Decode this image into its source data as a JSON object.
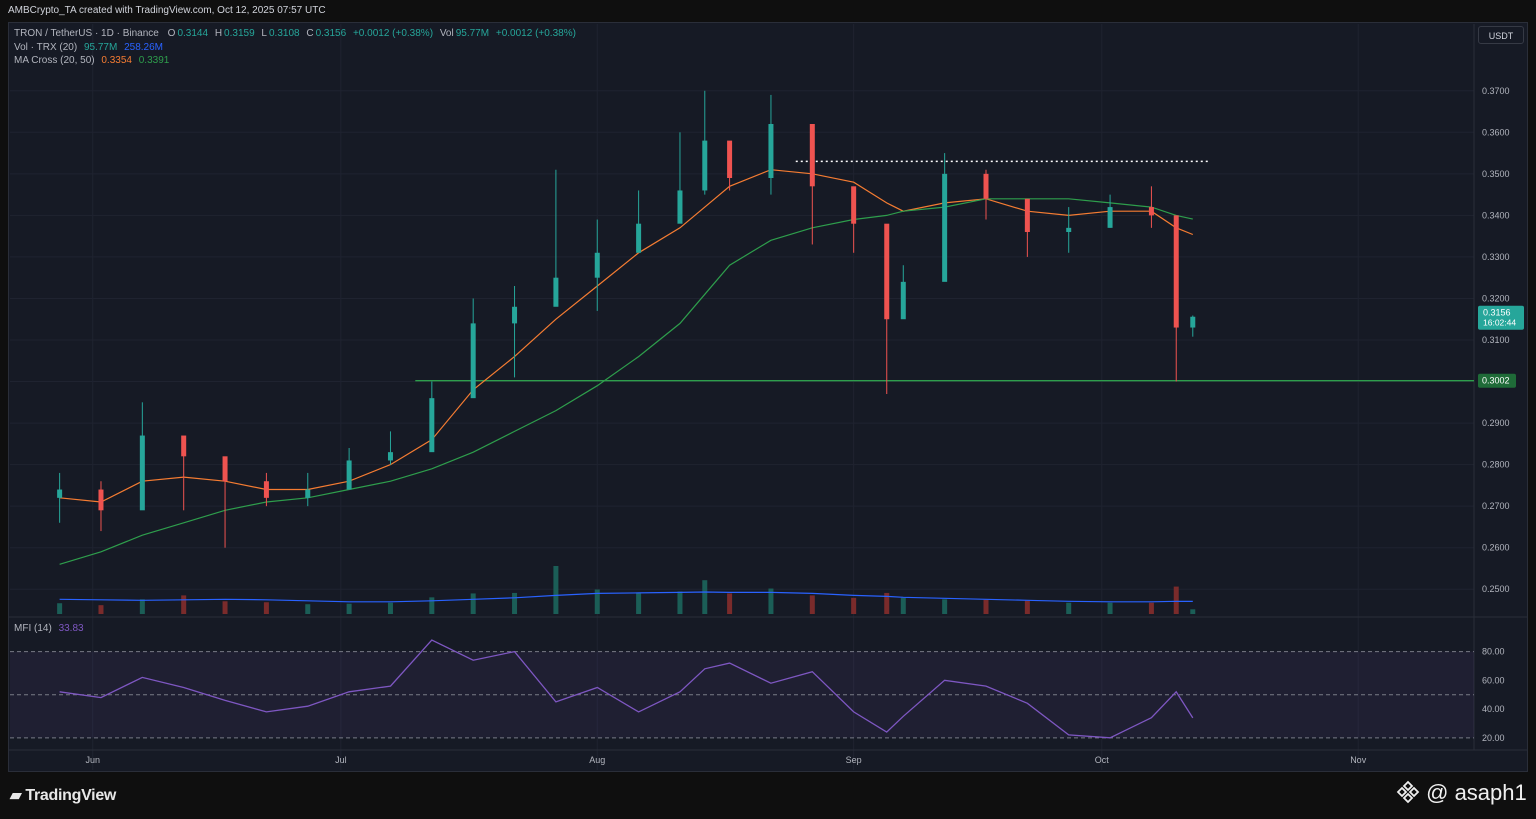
{
  "header": {
    "credit": "AMBCrypto_TA created with TradingView.com, Oct 12, 2025 07:57 UTC"
  },
  "symbol_line": {
    "name": "TRON / TetherUS · 1D · Binance",
    "o_label": "O",
    "o": "0.3144",
    "h_label": "H",
    "h": "0.3159",
    "l_label": "L",
    "l": "0.3108",
    "c_label": "C",
    "c": "0.3156",
    "change": "+0.0012 (+0.38%)",
    "vol_label": "Vol",
    "vol": "95.77M",
    "vol_change": "+0.0012 (+0.38%)"
  },
  "indicators": {
    "vol_label": "Vol · TRX (20)",
    "vol_value": "95.77M",
    "vol_ma": "258.26M",
    "ma_label": "MA Cross (20, 50)",
    "ma20": "0.3354",
    "ma50": "0.3391",
    "mfi_label": "MFI (14)",
    "mfi_value": "33.83"
  },
  "currency_badge": "USDT",
  "price_labels": {
    "current_price": "0.3156",
    "countdown": "16:02:44",
    "support_level": "0.3002"
  },
  "colors": {
    "up": "#26a69a",
    "down": "#ef5350",
    "up_vol": "#1b5e57",
    "down_vol": "#7a2b2b",
    "ma20": "#f57c32",
    "ma50": "#2e9e4c",
    "vol_ma": "#2962ff",
    "mfi_line": "#7e57c2",
    "support_line": "#2e9e4c",
    "resistance_line": "#ffffff",
    "background": "#161a25"
  },
  "footer": {
    "logo": "TradingView",
    "watermark": "@ asaph1",
    "watermark_icon": "binance-diamond-icon"
  },
  "chart_data": [
    {
      "type": "candlestick",
      "title": "TRON / TetherUS · 1D · Binance",
      "x": [
        "2025-05-28",
        "2025-06-02",
        "2025-06-07",
        "2025-06-12",
        "2025-06-17",
        "2025-06-22",
        "2025-06-27",
        "2025-07-02",
        "2025-07-07",
        "2025-07-12",
        "2025-07-17",
        "2025-07-22",
        "2025-07-27",
        "2025-08-01",
        "2025-08-06",
        "2025-08-11",
        "2025-08-14",
        "2025-08-17",
        "2025-08-22",
        "2025-08-27",
        "2025-09-01",
        "2025-09-05",
        "2025-09-07",
        "2025-09-12",
        "2025-09-17",
        "2025-09-22",
        "2025-09-27",
        "2025-10-02",
        "2025-10-07",
        "2025-10-10",
        "2025-10-12"
      ],
      "close": [
        0.274,
        0.269,
        0.287,
        0.282,
        0.276,
        0.272,
        0.274,
        0.281,
        0.283,
        0.296,
        0.314,
        0.318,
        0.325,
        0.331,
        0.338,
        0.346,
        0.358,
        0.349,
        0.362,
        0.347,
        0.338,
        0.315,
        0.324,
        0.35,
        0.344,
        0.336,
        0.337,
        0.342,
        0.34,
        0.313,
        0.3156
      ],
      "high": [
        0.278,
        0.276,
        0.295,
        0.286,
        0.279,
        0.278,
        0.278,
        0.284,
        0.288,
        0.3,
        0.32,
        0.323,
        0.351,
        0.339,
        0.346,
        0.36,
        0.37,
        0.353,
        0.369,
        0.352,
        0.342,
        0.33,
        0.328,
        0.355,
        0.351,
        0.343,
        0.342,
        0.345,
        0.347,
        0.338,
        0.3159
      ],
      "low": [
        0.266,
        0.264,
        0.282,
        0.269,
        0.26,
        0.27,
        0.27,
        0.278,
        0.28,
        0.294,
        0.3,
        0.301,
        0.32,
        0.317,
        0.332,
        0.344,
        0.345,
        0.346,
        0.345,
        0.333,
        0.331,
        0.297,
        0.319,
        0.341,
        0.339,
        0.33,
        0.331,
        0.337,
        0.337,
        0.3,
        0.3108
      ],
      "ylim": [
        0.245,
        0.375
      ],
      "y_ticks": [
        "0.2500",
        "0.2600",
        "0.2700",
        "0.2800",
        "0.2900",
        "0.3000",
        "0.3100",
        "0.3200",
        "0.3300",
        "0.3400",
        "0.3500",
        "0.3600",
        "0.3700"
      ],
      "x_ticks": [
        "Jun",
        "Jul",
        "Aug",
        "Sep",
        "Oct",
        "Nov"
      ],
      "series": [
        {
          "name": "MA 20",
          "values": [
            0.272,
            0.271,
            0.276,
            0.277,
            0.276,
            0.274,
            0.274,
            0.276,
            0.28,
            0.286,
            0.298,
            0.306,
            0.315,
            0.323,
            0.331,
            0.337,
            0.342,
            0.347,
            0.351,
            0.35,
            0.348,
            0.343,
            0.341,
            0.343,
            0.344,
            0.341,
            0.34,
            0.341,
            0.341,
            0.337,
            0.3354
          ]
        },
        {
          "name": "MA 50",
          "values": [
            0.256,
            0.259,
            0.263,
            0.266,
            0.269,
            0.271,
            0.272,
            0.274,
            0.276,
            0.279,
            0.283,
            0.288,
            0.293,
            0.299,
            0.306,
            0.314,
            0.321,
            0.328,
            0.334,
            0.337,
            0.339,
            0.34,
            0.341,
            0.342,
            0.344,
            0.344,
            0.344,
            0.343,
            0.342,
            0.34,
            0.3391
          ]
        }
      ],
      "support": 0.3002,
      "resistance": 0.353
    },
    {
      "type": "bar",
      "title": "Vol · TRX (20)",
      "x": [
        "2025-05-28",
        "2025-06-02",
        "2025-06-07",
        "2025-06-12",
        "2025-06-17",
        "2025-06-22",
        "2025-06-27",
        "2025-07-02",
        "2025-07-07",
        "2025-07-12",
        "2025-07-17",
        "2025-07-22",
        "2025-07-27",
        "2025-08-01",
        "2025-08-06",
        "2025-08-11",
        "2025-08-14",
        "2025-08-17",
        "2025-08-22",
        "2025-08-27",
        "2025-09-01",
        "2025-09-05",
        "2025-09-07",
        "2025-09-12",
        "2025-09-17",
        "2025-09-22",
        "2025-09-27",
        "2025-10-02",
        "2025-10-07",
        "2025-10-10",
        "2025-10-12"
      ],
      "values": [
        220,
        180,
        300,
        380,
        260,
        240,
        200,
        210,
        230,
        340,
        420,
        430,
        980,
        500,
        420,
        460,
        690,
        420,
        520,
        380,
        330,
        430,
        330,
        300,
        290,
        270,
        230,
        230,
        230,
        560,
        95.77
      ],
      "series": [
        {
          "name": "Vol MA",
          "values": [
            300,
            290,
            280,
            290,
            300,
            290,
            270,
            250,
            250,
            270,
            300,
            330,
            380,
            420,
            430,
            440,
            450,
            440,
            440,
            420,
            380,
            360,
            340,
            320,
            300,
            280,
            260,
            250,
            250,
            260,
            258.26
          ]
        }
      ]
    },
    {
      "type": "line",
      "title": "MFI (14)",
      "x": [
        "2025-05-28",
        "2025-06-02",
        "2025-06-07",
        "2025-06-12",
        "2025-06-17",
        "2025-06-22",
        "2025-06-27",
        "2025-07-02",
        "2025-07-07",
        "2025-07-12",
        "2025-07-17",
        "2025-07-22",
        "2025-07-27",
        "2025-08-01",
        "2025-08-06",
        "2025-08-11",
        "2025-08-14",
        "2025-08-17",
        "2025-08-22",
        "2025-08-27",
        "2025-09-01",
        "2025-09-05",
        "2025-09-07",
        "2025-09-12",
        "2025-09-17",
        "2025-09-22",
        "2025-09-27",
        "2025-10-02",
        "2025-10-07",
        "2025-10-10",
        "2025-10-12"
      ],
      "values": [
        52,
        48,
        62,
        55,
        46,
        38,
        42,
        52,
        56,
        88,
        74,
        80,
        45,
        55,
        38,
        52,
        68,
        72,
        58,
        66,
        38,
        24,
        35,
        60,
        56,
        44,
        22,
        20,
        34,
        52,
        33.83
      ],
      "ylim": [
        15,
        95
      ],
      "y_ticks": [
        "20.00",
        "40.00",
        "60.00",
        "80.00"
      ],
      "levels": [
        20,
        50,
        80
      ]
    }
  ]
}
